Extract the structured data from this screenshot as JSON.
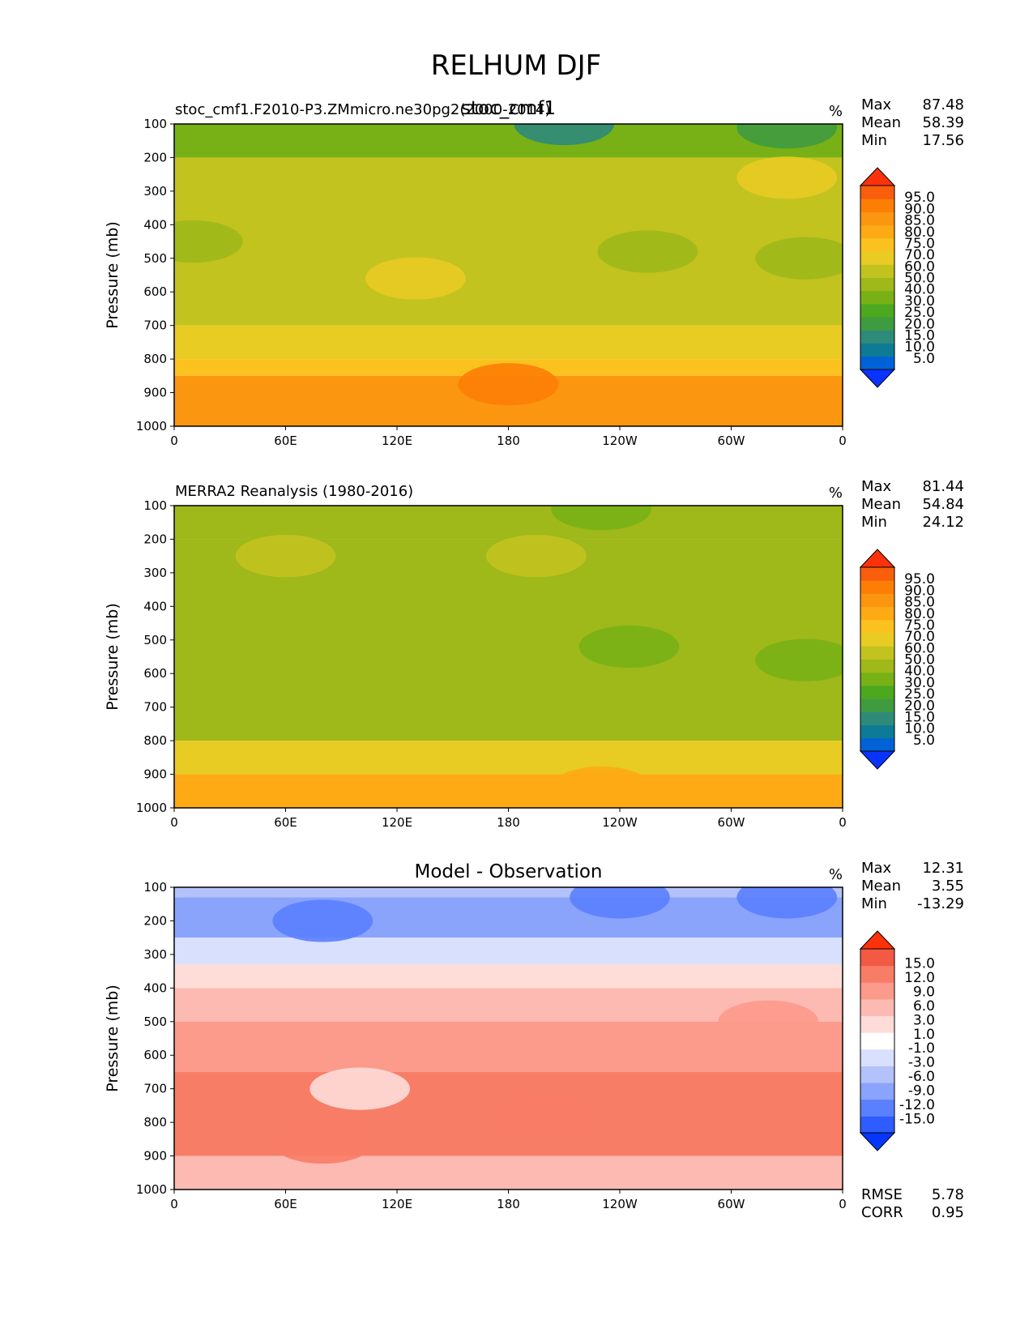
{
  "figure_title": "RELHUM DJF",
  "colors": {
    "full": [
      "#0a33ff",
      "#0062d6",
      "#0d7a96",
      "#2e8b79",
      "#3f9b3f",
      "#4ca81f",
      "#78b116",
      "#9fb81a",
      "#c2c31f",
      "#e8cb23",
      "#fbc21f",
      "#fdaa15",
      "#fb9610",
      "#fc7e05",
      "#f85e0c",
      "#fe320a"
    ],
    "diff": [
      "#0537ff",
      "#2e5cff",
      "#5a80ff",
      "#8aa3fb",
      "#b4c2fc",
      "#d8e0fd",
      "#ffffff",
      "#fedcd8",
      "#fdbab2",
      "#fc9a8b",
      "#f87d66",
      "#f25a43",
      "#fe320a"
    ]
  },
  "panels": [
    {
      "id": "model",
      "left_title": "stoc_cmf1.F2010-P3.ZMmicro.ne30pg2(2000-2014)",
      "center_title": "stoc_cmf1",
      "units": "%",
      "stats": [
        {
          "label": "Max",
          "value": "87.48"
        },
        {
          "label": "Mean",
          "value": "58.39"
        },
        {
          "label": "Min",
          "value": "17.56"
        }
      ],
      "colorbar_labels": [
        "95.0",
        "90.0",
        "85.0",
        "80.0",
        "75.0",
        "70.0",
        "60.0",
        "50.0",
        "40.0",
        "30.0",
        "25.0",
        "20.0",
        "15.0",
        "10.0",
        "5.0"
      ]
    },
    {
      "id": "obs",
      "left_title": "MERRA2 Reanalysis (1980-2016)",
      "center_title": "",
      "units": "%",
      "stats": [
        {
          "label": "Max",
          "value": "81.44"
        },
        {
          "label": "Mean",
          "value": "54.84"
        },
        {
          "label": "Min",
          "value": "24.12"
        }
      ],
      "colorbar_labels": [
        "95.0",
        "90.0",
        "85.0",
        "80.0",
        "75.0",
        "70.0",
        "60.0",
        "50.0",
        "40.0",
        "30.0",
        "25.0",
        "20.0",
        "15.0",
        "10.0",
        "5.0"
      ]
    },
    {
      "id": "diff",
      "left_title": "",
      "center_title": "Model - Observation",
      "units": "%",
      "stats": [
        {
          "label": "Max",
          "value": "12.31"
        },
        {
          "label": "Mean",
          "value": "3.55"
        },
        {
          "label": "Min",
          "value": "-13.29"
        }
      ],
      "colorbar_labels": [
        "15.0",
        "12.0",
        "9.0",
        "6.0",
        "3.0",
        "1.0",
        "-1.0",
        "-3.0",
        "-6.0",
        "-9.0",
        "-12.0",
        "-15.0"
      ],
      "extra_stats": [
        {
          "label": "RMSE",
          "value": "5.78"
        },
        {
          "label": "CORR",
          "value": "0.95"
        }
      ]
    }
  ],
  "chart_data": [
    {
      "type": "heatmap",
      "title": "stoc_cmf1",
      "subtitle": "stoc_cmf1.F2010-P3.ZMmicro.ne30pg2(2000-2014)",
      "variable": "RELHUM DJF",
      "units": "%",
      "xlabel": "",
      "ylabel": "Pressure (mb)",
      "x_ticks": [
        "0",
        "60E",
        "120E",
        "180",
        "120W",
        "60W",
        "0"
      ],
      "x_values": [
        0,
        60,
        120,
        180,
        240,
        300,
        360
      ],
      "xlim": [
        0,
        360
      ],
      "y_ticks": [
        "100",
        "200",
        "300",
        "400",
        "500",
        "600",
        "700",
        "800",
        "900",
        "1000"
      ],
      "ylim": [
        1000,
        100
      ],
      "levels": [
        5,
        10,
        15,
        20,
        25,
        30,
        40,
        50,
        60,
        70,
        75,
        80,
        85,
        90,
        95
      ],
      "bands": [
        {
          "p": [
            100,
            200
          ],
          "value": 38
        },
        {
          "p": [
            200,
            700
          ],
          "value": 55
        },
        {
          "p": [
            700,
            800
          ],
          "value": 66
        },
        {
          "p": [
            800,
            850
          ],
          "value": 73
        },
        {
          "p": [
            850,
            1000
          ],
          "value": 82
        }
      ],
      "blobs": [
        {
          "lon": 210,
          "p": 100,
          "value": 18
        },
        {
          "lon": 330,
          "p": 110,
          "value": 22
        },
        {
          "lon": 330,
          "p": 260,
          "value": 65
        },
        {
          "lon": 255,
          "p": 480,
          "value": 45
        },
        {
          "lon": 340,
          "p": 500,
          "value": 45
        },
        {
          "lon": 10,
          "p": 450,
          "value": 45
        },
        {
          "lon": 130,
          "p": 560,
          "value": 65
        },
        {
          "lon": 180,
          "p": 875,
          "value": 87
        }
      ],
      "stats": {
        "max": 87.48,
        "mean": 58.39,
        "min": 17.56
      }
    },
    {
      "type": "heatmap",
      "title": "MERRA2 Reanalysis (1980-2016)",
      "variable": "RELHUM DJF",
      "units": "%",
      "xlabel": "",
      "ylabel": "Pressure (mb)",
      "x_ticks": [
        "0",
        "60E",
        "120E",
        "180",
        "120W",
        "60W",
        "0"
      ],
      "x_values": [
        0,
        60,
        120,
        180,
        240,
        300,
        360
      ],
      "xlim": [
        0,
        360
      ],
      "y_ticks": [
        "100",
        "200",
        "300",
        "400",
        "500",
        "600",
        "700",
        "800",
        "900",
        "1000"
      ],
      "ylim": [
        1000,
        100
      ],
      "levels": [
        5,
        10,
        15,
        20,
        25,
        30,
        40,
        50,
        60,
        70,
        75,
        80,
        85,
        90,
        95
      ],
      "bands": [
        {
          "p": [
            100,
            200
          ],
          "value": 42
        },
        {
          "p": [
            200,
            800
          ],
          "value": 48
        },
        {
          "p": [
            800,
            900
          ],
          "value": 62
        },
        {
          "p": [
            900,
            1000
          ],
          "value": 75
        }
      ],
      "blobs": [
        {
          "lon": 60,
          "p": 250,
          "value": 55
        },
        {
          "lon": 195,
          "p": 250,
          "value": 55
        },
        {
          "lon": 245,
          "p": 520,
          "value": 35
        },
        {
          "lon": 230,
          "p": 110,
          "value": 30
        },
        {
          "lon": 340,
          "p": 560,
          "value": 35
        },
        {
          "lon": 230,
          "p": 940,
          "value": 78
        }
      ],
      "stats": {
        "max": 81.44,
        "mean": 54.84,
        "min": 24.12
      }
    },
    {
      "type": "heatmap",
      "title": "Model - Observation",
      "variable": "RELHUM DJF",
      "units": "%",
      "xlabel": "",
      "ylabel": "Pressure (mb)",
      "x_ticks": [
        "0",
        "60E",
        "120E",
        "180",
        "120W",
        "60W",
        "0"
      ],
      "x_values": [
        0,
        60,
        120,
        180,
        240,
        300,
        360
      ],
      "xlim": [
        0,
        360
      ],
      "y_ticks": [
        "100",
        "200",
        "300",
        "400",
        "500",
        "600",
        "700",
        "800",
        "900",
        "1000"
      ],
      "ylim": [
        1000,
        100
      ],
      "levels": [
        -15,
        -12,
        -9,
        -6,
        -3,
        -1,
        1,
        3,
        6,
        9,
        12,
        15
      ],
      "bands": [
        {
          "p": [
            100,
            130
          ],
          "value": -4
        },
        {
          "p": [
            130,
            250
          ],
          "value": -7
        },
        {
          "p": [
            250,
            330
          ],
          "value": -2
        },
        {
          "p": [
            330,
            400
          ],
          "value": 2
        },
        {
          "p": [
            400,
            500
          ],
          "value": 4
        },
        {
          "p": [
            500,
            650
          ],
          "value": 7
        },
        {
          "p": [
            650,
            900
          ],
          "value": 9
        },
        {
          "p": [
            900,
            1000
          ],
          "value": 4
        }
      ],
      "blobs": [
        {
          "lon": 80,
          "p": 200,
          "value": -10
        },
        {
          "lon": 240,
          "p": 130,
          "value": -10
        },
        {
          "lon": 330,
          "p": 130,
          "value": -12
        },
        {
          "lon": 200,
          "p": 780,
          "value": 10
        },
        {
          "lon": 320,
          "p": 500,
          "value": 7
        },
        {
          "lon": 80,
          "p": 860,
          "value": 10
        },
        {
          "lon": 100,
          "p": 700,
          "value": 1
        }
      ],
      "stats": {
        "max": 12.31,
        "mean": 3.55,
        "min": -13.29,
        "rmse": 5.78,
        "corr": 0.95
      }
    }
  ]
}
